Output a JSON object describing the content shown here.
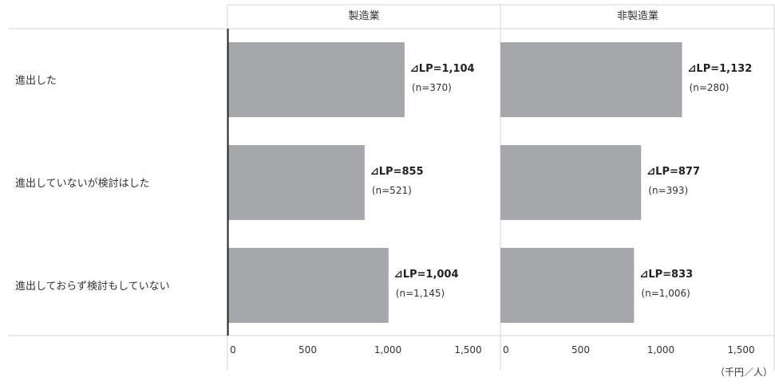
{
  "chart_data": {
    "type": "bar",
    "orientation": "horizontal",
    "panels": [
      "製造業",
      "非製造業"
    ],
    "categories": [
      "進出した",
      "進出していないが検討はした",
      "進出しておらず検討もしていない"
    ],
    "series": [
      {
        "values": [
          1104,
          855,
          1004
        ],
        "labels": [
          "⊿LP=1,104",
          "⊿LP=855",
          "⊿LP=1,004"
        ],
        "n_labels": [
          "(n=370)",
          "(n=521)",
          "(n=1,145)"
        ]
      },
      {
        "values": [
          1132,
          877,
          833
        ],
        "labels": [
          "⊿LP=1,132",
          "⊿LP=877",
          "⊿LP=833"
        ],
        "n_labels": [
          "(n=280)",
          "(n=393)",
          "(n=1,006)"
        ]
      }
    ],
    "xlim": [
      0,
      1700
    ],
    "xticks": [
      0,
      500,
      1000,
      1500
    ],
    "xtick_labels": [
      "0",
      "500",
      "1,000",
      "1,500"
    ],
    "unit_label": "（千円／人）",
    "bar_color": "#a6a7aa",
    "grid": false,
    "legend": "none"
  }
}
